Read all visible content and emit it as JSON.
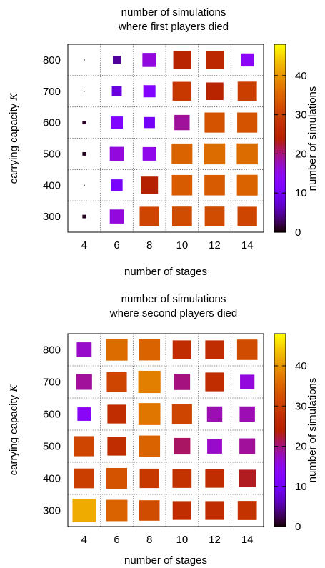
{
  "chart_data": [
    {
      "type": "heatmap",
      "title_lines": [
        "number of simulations",
        "where first players died"
      ],
      "xlabel": "number of stages",
      "ylabel": "carrying capacity ",
      "ylabel_symbol": "K",
      "colorbar_label": "number of simulations",
      "x_ticks": [
        "4",
        "6",
        "8",
        "10",
        "12",
        "14"
      ],
      "y_ticks": [
        "300",
        "400",
        "500",
        "600",
        "700",
        "800"
      ],
      "colorbar_ticks": [
        "0",
        "10",
        "20",
        "30",
        "40"
      ],
      "x": [
        4,
        6,
        8,
        10,
        12,
        14
      ],
      "y": [
        300,
        400,
        500,
        600,
        700,
        800
      ],
      "values": [
        [
          1,
          16,
          31,
          32,
          32,
          31
        ],
        [
          0,
          11,
          24,
          34,
          34,
          35
        ],
        [
          1,
          16,
          15,
          35,
          36,
          36
        ],
        [
          1,
          12,
          10,
          19,
          33,
          33
        ],
        [
          0,
          8,
          12,
          29,
          25,
          30
        ],
        [
          0,
          5,
          16,
          25,
          26,
          14
        ]
      ],
      "zlim": [
        0,
        48
      ],
      "grid": true
    },
    {
      "type": "heatmap",
      "title_lines": [
        "number of simulations",
        "where second players died"
      ],
      "xlabel": "number of stages",
      "ylabel": "carrying capacity ",
      "ylabel_symbol": "K",
      "colorbar_label": "number of simulations",
      "x_ticks": [
        "4",
        "6",
        "8",
        "10",
        "12",
        "14"
      ],
      "y_ticks": [
        "300",
        "400",
        "500",
        "600",
        "700",
        "800"
      ],
      "colorbar_ticks": [
        "0",
        "10",
        "20",
        "30",
        "40"
      ],
      "x": [
        4,
        6,
        8,
        10,
        12,
        14
      ],
      "y": [
        300,
        400,
        500,
        600,
        700,
        800
      ],
      "values": [
        [
          42,
          35,
          32,
          27,
          27,
          28
        ],
        [
          30,
          33,
          29,
          28,
          27,
          23
        ],
        [
          31,
          27,
          35,
          21,
          17,
          19
        ],
        [
          14,
          27,
          37,
          31,
          18,
          18
        ],
        [
          19,
          31,
          38,
          20,
          27,
          16
        ],
        [
          17,
          36,
          35,
          27,
          27,
          32
        ]
      ],
      "zlim": [
        0,
        48
      ],
      "grid": true
    }
  ]
}
